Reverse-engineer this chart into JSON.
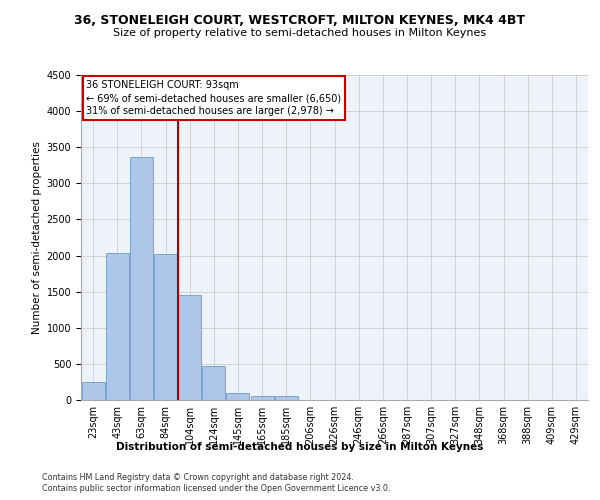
{
  "title_line1": "36, STONELEIGH COURT, WESTCROFT, MILTON KEYNES, MK4 4BT",
  "title_line2": "Size of property relative to semi-detached houses in Milton Keynes",
  "xlabel": "Distribution of semi-detached houses by size in Milton Keynes",
  "ylabel": "Number of semi-detached properties",
  "footer_line1": "Contains HM Land Registry data © Crown copyright and database right 2024.",
  "footer_line2": "Contains public sector information licensed under the Open Government Licence v3.0.",
  "bar_labels": [
    "23sqm",
    "43sqm",
    "63sqm",
    "84sqm",
    "104sqm",
    "124sqm",
    "145sqm",
    "165sqm",
    "185sqm",
    "206sqm",
    "226sqm",
    "246sqm",
    "266sqm",
    "287sqm",
    "307sqm",
    "327sqm",
    "348sqm",
    "368sqm",
    "388sqm",
    "409sqm",
    "429sqm"
  ],
  "bar_values": [
    250,
    2030,
    3370,
    2020,
    1460,
    475,
    100,
    60,
    50,
    0,
    0,
    0,
    0,
    0,
    0,
    0,
    0,
    0,
    0,
    0,
    0
  ],
  "bar_color": "#aec6e8",
  "bar_edge_color": "#5a8fc2",
  "grid_color": "#cccccc",
  "background_color": "#eef2f9",
  "annotation_text_line1": "36 STONELEIGH COURT: 93sqm",
  "annotation_text_line2": "← 69% of semi-detached houses are smaller (6,650)",
  "annotation_text_line3": "31% of semi-detached houses are larger (2,978) →",
  "annotation_box_color": "#ffffff",
  "annotation_box_edge_color": "#cc0000",
  "red_line_color": "#aa0000",
  "red_line_bin": 3,
  "ylim": [
    0,
    4500
  ],
  "yticks": [
    0,
    500,
    1000,
    1500,
    2000,
    2500,
    3000,
    3500,
    4000,
    4500
  ],
  "title1_fontsize": 9.0,
  "title2_fontsize": 8.0,
  "ylabel_fontsize": 7.5,
  "xlabel_fontsize": 7.5,
  "tick_fontsize": 7.0,
  "footer_fontsize": 5.8,
  "annot_fontsize": 7.0
}
